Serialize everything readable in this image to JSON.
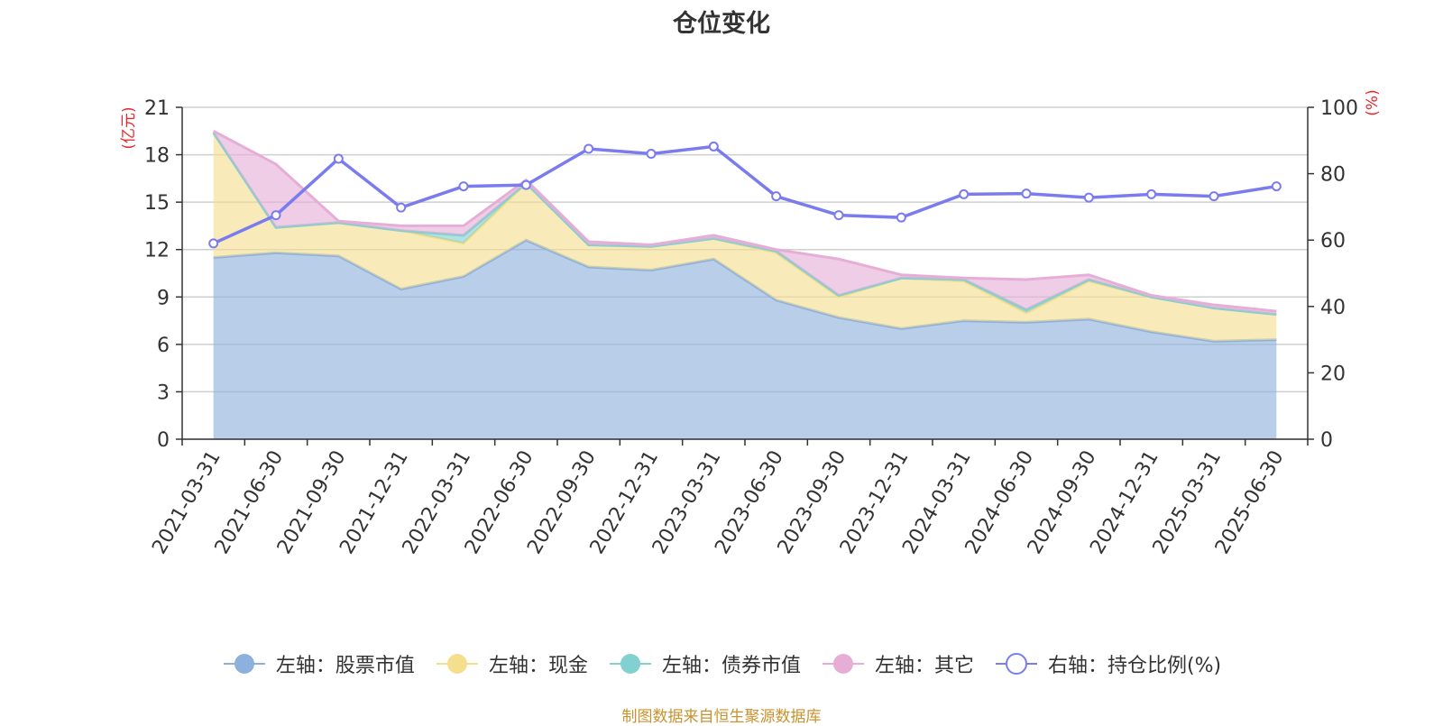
{
  "chart_data": {
    "type": "area",
    "title": "仓位变化",
    "x": [
      "2021-03-31",
      "2021-06-30",
      "2021-09-30",
      "2021-12-31",
      "2022-03-31",
      "2022-06-30",
      "2022-09-30",
      "2022-12-31",
      "2023-03-31",
      "2023-06-30",
      "2023-09-30",
      "2023-12-31",
      "2024-03-31",
      "2024-06-30",
      "2024-09-30",
      "2024-12-31",
      "2025-03-31",
      "2025-06-30"
    ],
    "left_axis": {
      "label": "(亿元)",
      "range": [
        0,
        21
      ],
      "ticks": [
        "0",
        "3",
        "6",
        "9",
        "12",
        "15",
        "18",
        "21"
      ]
    },
    "right_axis": {
      "label": "(%)",
      "range": [
        0,
        100
      ],
      "ticks": [
        "0",
        "20",
        "40",
        "60",
        "80",
        "100"
      ]
    },
    "stacked": true,
    "grid": true,
    "legend_position": "bottom",
    "series": [
      {
        "name": "左轴：股票市值",
        "axis": "left",
        "color": "#8eb0dc",
        "values": [
          11.5,
          11.8,
          11.6,
          9.5,
          10.3,
          12.6,
          10.9,
          10.7,
          11.4,
          8.8,
          7.7,
          7.0,
          7.5,
          7.4,
          7.6,
          6.8,
          6.2,
          6.3
        ]
      },
      {
        "name": "左轴：现金",
        "axis": "left",
        "color": "#f5df8e",
        "values": [
          7.9,
          1.6,
          2.1,
          3.7,
          2.1,
          3.6,
          1.4,
          1.5,
          1.3,
          3.0,
          1.3,
          3.2,
          2.5,
          0.6,
          2.4,
          2.2,
          2.1,
          1.6
        ]
      },
      {
        "name": "左轴：债券市值",
        "axis": "left",
        "color": "#83d0d0",
        "values": [
          0,
          0,
          0,
          0,
          0.5,
          0,
          0,
          0,
          0,
          0.1,
          0.1,
          0,
          0.1,
          0.2,
          0.1,
          0,
          0,
          0
        ]
      },
      {
        "name": "左轴：其它",
        "axis": "left",
        "color": "#e6aed7",
        "values": [
          0.1,
          4.0,
          0.1,
          0.3,
          0.6,
          0.2,
          0.2,
          0.1,
          0.2,
          0.1,
          2.3,
          0.2,
          0.1,
          1.9,
          0.3,
          0.1,
          0.2,
          0.2
        ]
      },
      {
        "name": "右轴：持仓比例(%)",
        "axis": "right",
        "type": "line",
        "color": "#7b7bf0",
        "values": [
          59,
          67.5,
          84.5,
          69.8,
          76.2,
          76.6,
          87.5,
          86,
          88.2,
          73.2,
          67.5,
          66.8,
          73.8,
          74,
          72.8,
          73.8,
          73.2,
          76.2
        ]
      }
    ]
  },
  "legend": [
    {
      "label": "左轴：股票市值",
      "color": "#8eb0dc",
      "icon": "filled-circle"
    },
    {
      "label": "左轴：现金",
      "color": "#f5df8e",
      "icon": "filled-circle"
    },
    {
      "label": "左轴：债券市值",
      "color": "#83d0d0",
      "icon": "filled-circle"
    },
    {
      "label": "左轴：其它",
      "color": "#e6aed7",
      "icon": "filled-circle"
    },
    {
      "label": "右轴：持仓比例(%)",
      "color": "#7b7bf0",
      "icon": "hollow-circle"
    }
  ],
  "source_note": "制图数据来自恒生聚源数据库"
}
